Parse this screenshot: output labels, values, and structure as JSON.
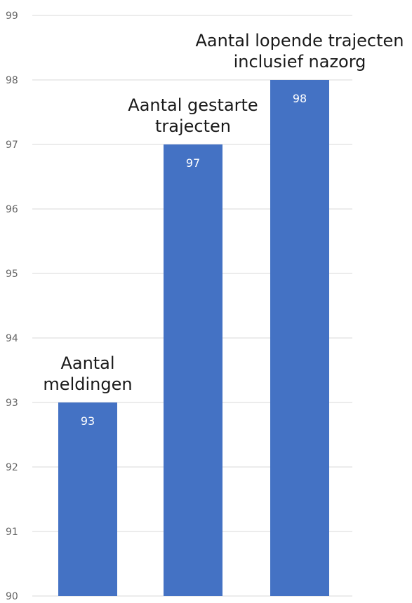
{
  "chart_data": {
    "type": "bar",
    "categories": [
      [
        "Aantal",
        "meldingen"
      ],
      [
        "Aantal gestarte",
        "trajecten"
      ],
      [
        "Aantal lopende trajecten",
        "inclusief nazorg"
      ]
    ],
    "values": [
      93,
      97,
      98
    ],
    "data_labels": [
      "93",
      "97",
      "98"
    ],
    "ylim": [
      90,
      99
    ],
    "yticks": [
      "90",
      "91",
      "92",
      "93",
      "94",
      "95",
      "96",
      "97",
      "98",
      "99"
    ],
    "grid": true,
    "legend": "none",
    "bar_color": "#4472c4",
    "title": "",
    "xlabel": "",
    "ylabel": ""
  }
}
